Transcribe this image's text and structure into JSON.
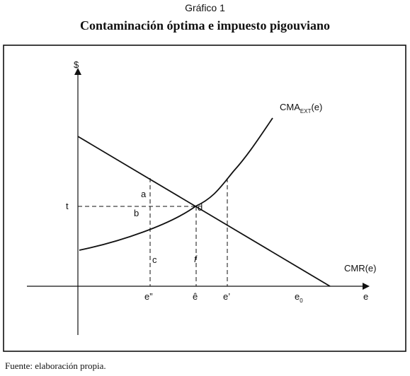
{
  "header": {
    "caption": "Gráfico 1",
    "title": "Contaminación óptima e impuesto pigouviano"
  },
  "axes": {
    "y_label": "$",
    "x_label": "e"
  },
  "curves": {
    "cma_main": "CMA",
    "cma_sub": "EXT",
    "cma_arg": "(e)",
    "cmr": "CMR(e)"
  },
  "points": {
    "t": "t",
    "a": "a",
    "b": "b",
    "c": "c",
    "d": "d",
    "f": "f"
  },
  "x_ticks": {
    "e_double": "e”",
    "e_hat": "ê",
    "e_prime": "e’",
    "e0_main": "e",
    "e0_sub": "0"
  },
  "footer": {
    "source": "Fuente: elaboración propia."
  },
  "colors": {
    "line": "#111111",
    "frame": "#111111"
  }
}
